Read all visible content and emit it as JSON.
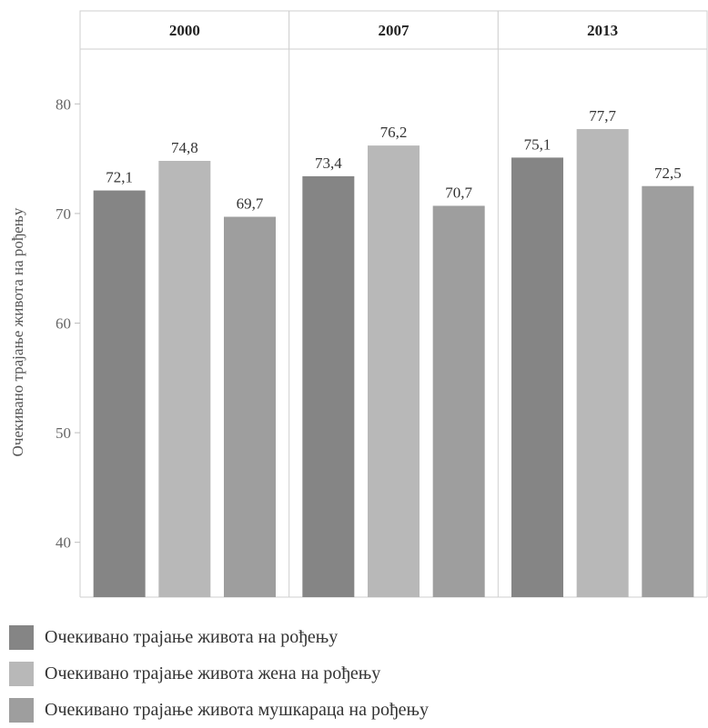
{
  "chart_data": {
    "type": "bar",
    "title": "",
    "xlabel": "",
    "ylabel": "Очекивано трајање живота на рођењу",
    "ylim": [
      35,
      85
    ],
    "yticks": [
      40,
      50,
      60,
      70,
      80
    ],
    "grid": false,
    "legend_position": "bottom",
    "panels": [
      "2000",
      "2007",
      "2013"
    ],
    "series": [
      {
        "name": "Очекивано трајање живота на рођењу",
        "color": "#858585",
        "values": [
          72.1,
          73.4,
          75.1
        ],
        "labels": [
          "72,1",
          "73,4",
          "75,1"
        ]
      },
      {
        "name": "Очекивано трајање живота жена на рођењу",
        "color": "#b8b8b8",
        "values": [
          74.8,
          76.2,
          77.7
        ],
        "labels": [
          "74,8",
          "76,2",
          "77,7"
        ]
      },
      {
        "name": "Очекивано трајање живота мушкараца на рођењу",
        "color": "#9e9e9e",
        "values": [
          69.7,
          70.7,
          72.5
        ],
        "labels": [
          "69,7",
          "70,7",
          "72,5"
        ]
      }
    ]
  }
}
